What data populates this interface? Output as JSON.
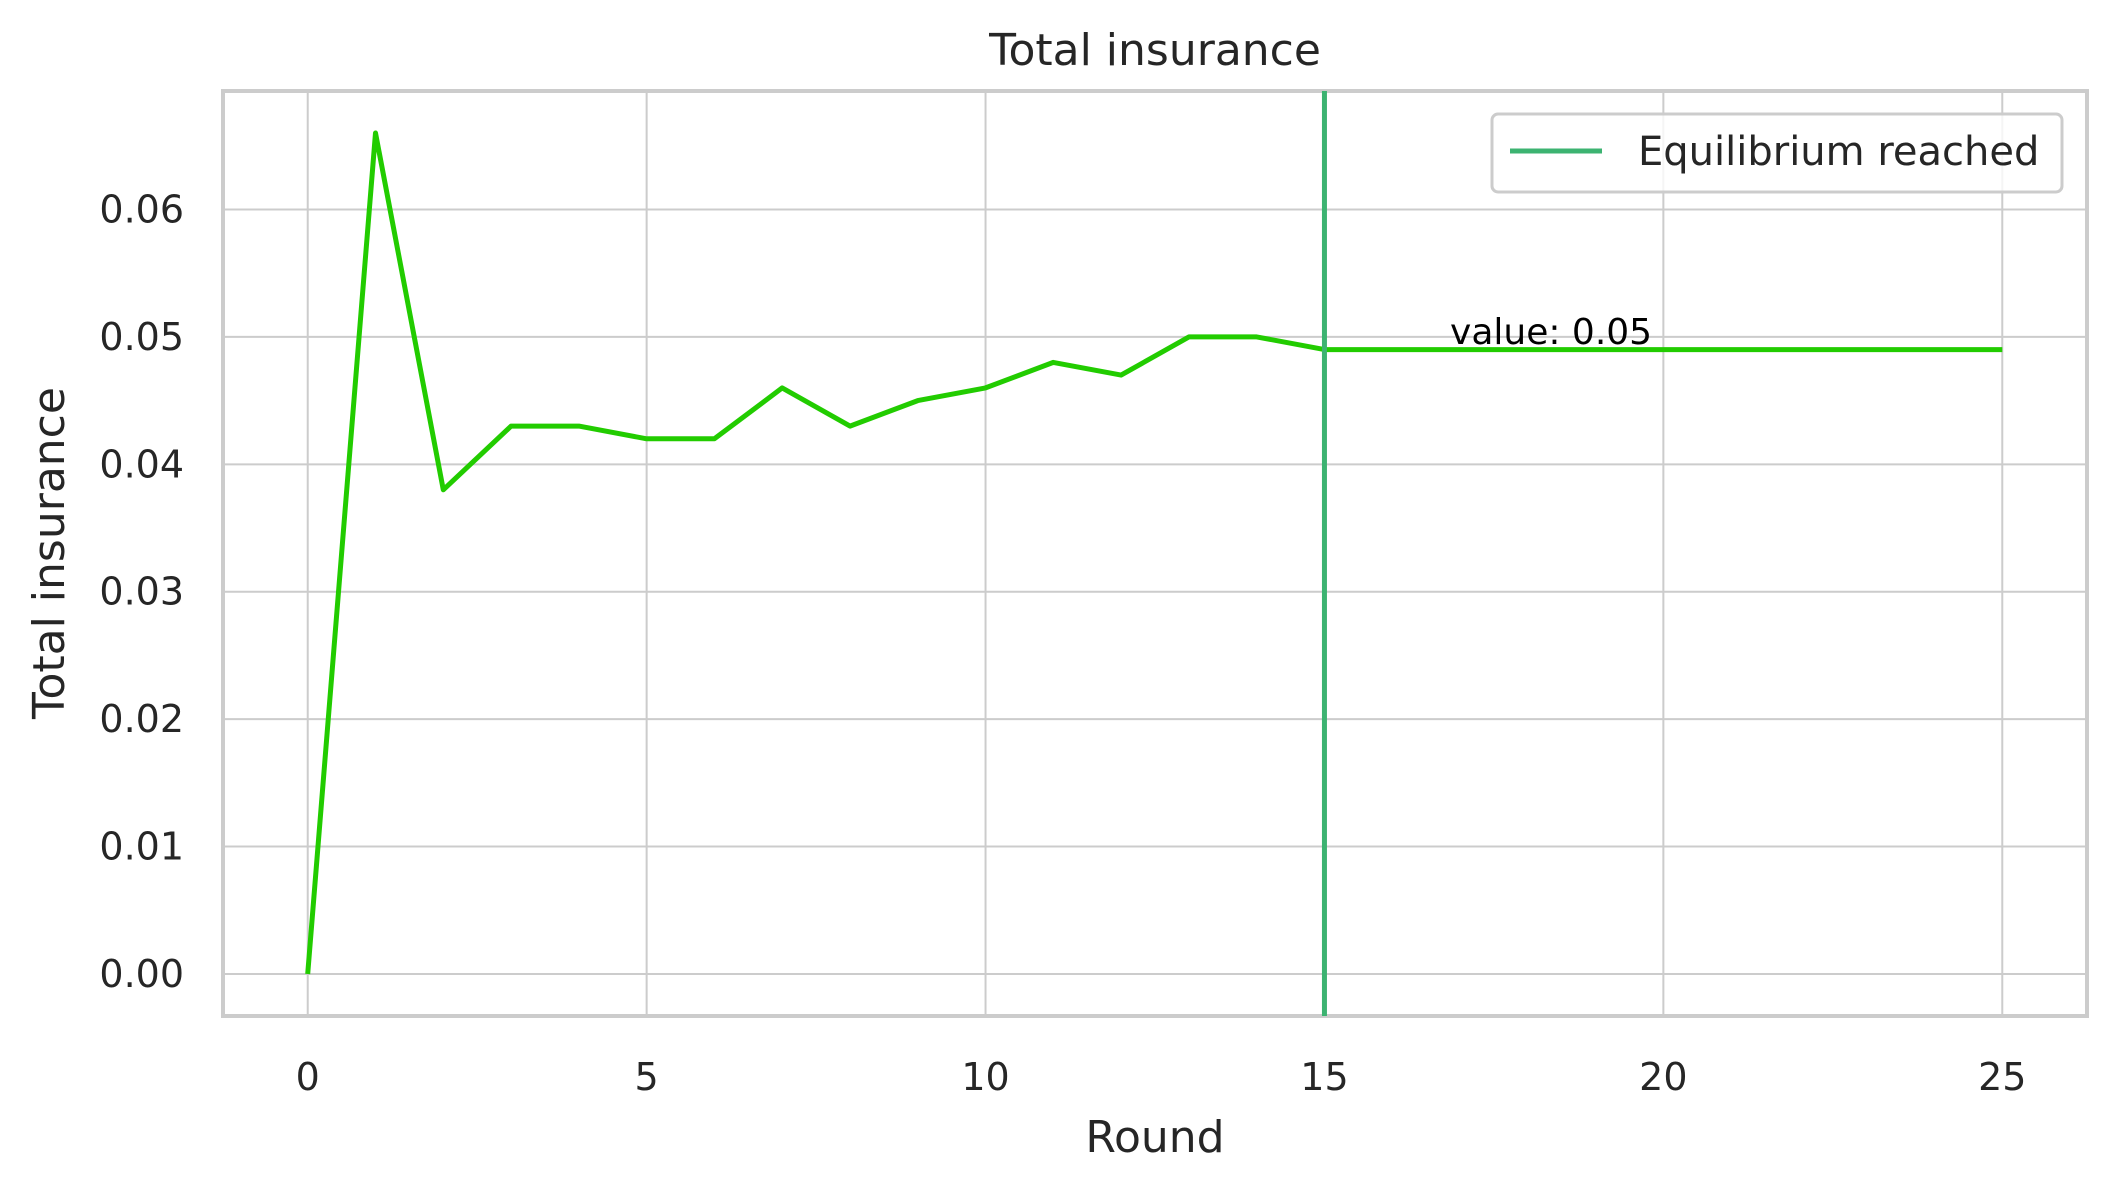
{
  "chart_data": {
    "type": "line",
    "title": "Total insurance",
    "xlabel": "Round",
    "ylabel": "Total insurance",
    "xlim": [
      -1.25,
      26.25
    ],
    "ylim": [
      -0.0033,
      0.0693
    ],
    "xticks": [
      0,
      5,
      10,
      15,
      20,
      25
    ],
    "xtick_labels": [
      "0",
      "5",
      "10",
      "15",
      "20",
      "25"
    ],
    "yticks": [
      0.0,
      0.01,
      0.02,
      0.03,
      0.04,
      0.05,
      0.06
    ],
    "ytick_labels": [
      "0.00",
      "0.01",
      "0.02",
      "0.03",
      "0.04",
      "0.05",
      "0.06"
    ],
    "grid": true,
    "series": [
      {
        "color": "#22cc00",
        "x": [
          0,
          1,
          2,
          3,
          4,
          5,
          6,
          7,
          8,
          9,
          10,
          11,
          12,
          13,
          14,
          15,
          16,
          17,
          18,
          19,
          20,
          21,
          22,
          23,
          24,
          25
        ],
        "y": [
          0.0,
          0.066,
          0.038,
          0.043,
          0.043,
          0.042,
          0.042,
          0.046,
          0.043,
          0.045,
          0.046,
          0.048,
          0.047,
          0.05,
          0.05,
          0.049,
          0.049,
          0.049,
          0.049,
          0.049,
          0.049,
          0.049,
          0.049,
          0.049,
          0.049,
          0.049
        ]
      }
    ],
    "vline": {
      "x": 15,
      "color": "#3cb371",
      "label": "Equilibrium reached"
    },
    "annotation": {
      "text": "value: 0.05",
      "x": 17,
      "y": 0.051
    },
    "legend": {
      "position": "top-right",
      "entries": [
        "Equilibrium reached"
      ]
    }
  }
}
